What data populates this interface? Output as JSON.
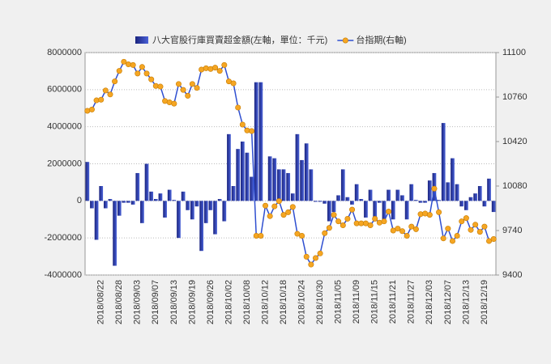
{
  "chart_data": {
    "type": "bar-line",
    "categories": [
      null,
      null,
      null,
      "2018/08/22",
      null,
      null,
      null,
      "2018/08/28",
      null,
      null,
      null,
      "2018/09/03",
      null,
      null,
      null,
      "2018/09/07",
      null,
      null,
      null,
      "2018/09/13",
      null,
      null,
      null,
      "2018/09/19",
      null,
      null,
      null,
      "2018/09/26",
      null,
      null,
      null,
      "2018/10/02",
      null,
      null,
      null,
      "2018/10/08",
      null,
      null,
      null,
      "2018/10/12",
      null,
      null,
      null,
      "2018/10/18",
      null,
      null,
      null,
      "2018/10/24",
      null,
      null,
      null,
      "2018/10/30",
      null,
      null,
      null,
      "2018/11/05",
      null,
      null,
      null,
      "2018/11/09",
      null,
      null,
      null,
      "2018/11/15",
      null,
      null,
      null,
      "2018/11/21",
      null,
      null,
      null,
      "2018/11/27",
      null,
      null,
      null,
      "2018/12/03",
      null,
      null,
      null,
      "2018/12/07",
      null,
      null,
      null,
      "2018/12/13",
      null,
      null,
      null,
      "2018/12/19",
      null,
      null
    ],
    "series": [
      {
        "name": "八大官股行庫買賣超金額(左軸，單位：千元)",
        "type": "bar",
        "axis": "y",
        "color": "#2b3aa8",
        "values": [
          2100000,
          -400000,
          -2100000,
          800000,
          -400000,
          100000,
          -3500000,
          -800000,
          -100000,
          -100000,
          -200000,
          1500000,
          -1200000,
          2000000,
          500000,
          100000,
          400000,
          -900000,
          600000,
          50000,
          -2000000,
          500000,
          -500000,
          -1000000,
          -300000,
          -2700000,
          -1200000,
          -500000,
          -1800000,
          100000,
          -1100000,
          3600000,
          800000,
          2800000,
          3200000,
          2600000,
          1300000,
          6400000,
          6400000,
          0,
          2400000,
          2300000,
          1700000,
          1700000,
          1500000,
          400000,
          3600000,
          2200000,
          3100000,
          1700000,
          -50000,
          -50000,
          -150000,
          -1100000,
          -600000,
          300000,
          1700000,
          200000,
          -200000,
          900000,
          100000,
          -900000,
          600000,
          -900000,
          -100000,
          -1000000,
          600000,
          -1000000,
          600000,
          300000,
          -1000000,
          900000,
          50000,
          -100000,
          -100000,
          1100000,
          1500000,
          50000,
          4200000,
          1000000,
          2300000,
          900000,
          -300000,
          -500000,
          200000,
          400000,
          800000,
          -300000,
          1200000,
          -600000
        ]
      },
      {
        "name": "台指期(右軸)",
        "type": "line",
        "axis": "y2",
        "color": "#2f4fd0",
        "marker_color": "#f5a623",
        "values": [
          10655,
          10665,
          10735,
          10740,
          10810,
          10780,
          10880,
          10960,
          11030,
          11010,
          11005,
          10940,
          10990,
          10940,
          10895,
          10845,
          10840,
          10730,
          10720,
          10710,
          10860,
          10815,
          10770,
          10860,
          10830,
          10970,
          10980,
          10975,
          10985,
          10960,
          11005,
          10880,
          10865,
          10680,
          10550,
          10505,
          10500,
          9700,
          9700,
          9930,
          9850,
          9925,
          9965,
          9860,
          9880,
          9920,
          9715,
          9700,
          9540,
          9480,
          9530,
          9565,
          9720,
          9760,
          9860,
          9810,
          9780,
          9830,
          9900,
          9795,
          9795,
          9795,
          9780,
          9830,
          9800,
          9810,
          9885,
          9740,
          9755,
          9735,
          9700,
          9770,
          9750,
          9865,
          9870,
          9860,
          10060,
          9880,
          9680,
          9755,
          9660,
          9700,
          9810,
          9835,
          9745,
          9785,
          9730,
          9770,
          9660,
          9675
        ]
      }
    ],
    "ylim": [
      -4000000,
      8000000
    ],
    "yticks": [
      -4000000,
      -2000000,
      0,
      2000000,
      4000000,
      6000000,
      8000000
    ],
    "y2lim": [
      9400,
      11100
    ],
    "y2ticks": [
      9400,
      9740,
      10080,
      10420,
      10760,
      11100
    ],
    "grid": true,
    "legend": "top"
  }
}
